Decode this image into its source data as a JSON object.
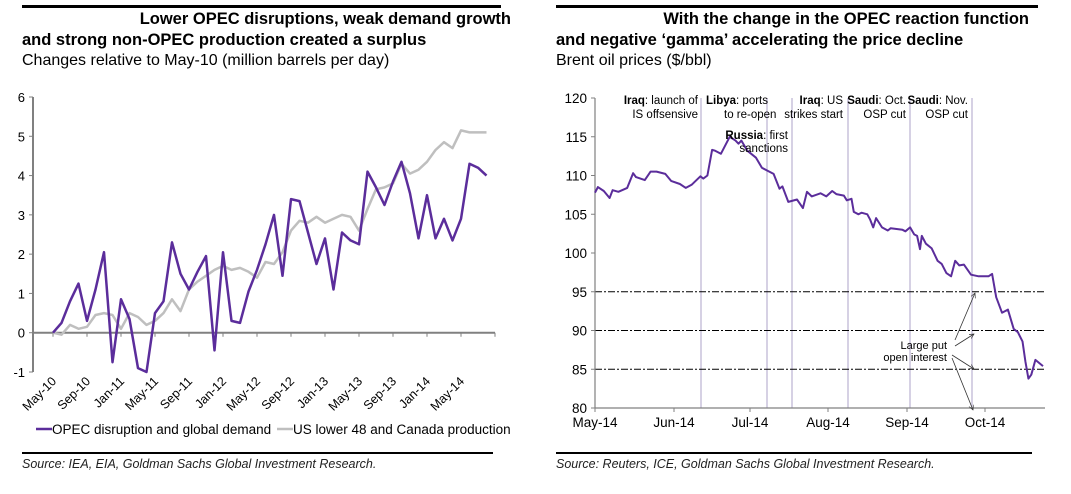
{
  "colors": {
    "opec": "#5b2d9b",
    "us": "#bfbfbf",
    "brent": "#5b2d9b",
    "axis": "#808080",
    "event_line": "#c9c2dc"
  },
  "left": {
    "title_line1": "Lower OPEC disruptions, weak demand growth",
    "title_line2": "and strong non-OPEC production created a surplus",
    "subtitle": "Changes relative to May-10 (million barrels per day)",
    "source": "Source: IEA, EIA, Goldman Sachs Global Investment Research."
  },
  "right": {
    "title_line1": "With the change in the OPEC reaction function",
    "title_line2": "and negative ‘gamma’ accelerating the price decline",
    "subtitle": "Brent oil prices ($/bbl)",
    "source": "Source: Reuters, ICE, Goldman Sachs Global Investment Research."
  },
  "chart_data": [
    {
      "type": "line",
      "title": "Lower OPEC disruptions, weak demand growth and strong non-OPEC production created a surplus",
      "subtitle": "Changes relative to May-10 (million barrels per day)",
      "xlabel": "",
      "ylabel": "",
      "ylim": [
        -1,
        6
      ],
      "yticks": [
        -1,
        0,
        1,
        2,
        3,
        4,
        5,
        6
      ],
      "xticks": [
        "May-10",
        "Sep-10",
        "Jan-11",
        "May-11",
        "Sep-11",
        "Jan-12",
        "May-12",
        "Sep-12",
        "Jan-13",
        "May-13",
        "Sep-13",
        "Jan-14",
        "May-14"
      ],
      "x_start": "May-10",
      "x_step": "1 month",
      "legend": "bottom",
      "series": [
        {
          "name": "OPEC disruption and global demand",
          "values": [
            0,
            0.25,
            0.8,
            1.25,
            0.3,
            1.1,
            2.05,
            -0.75,
            0.85,
            0.35,
            -0.9,
            -1.0,
            0.5,
            0.8,
            2.3,
            1.5,
            1.1,
            1.55,
            1.95,
            -0.45,
            2.05,
            0.3,
            0.25,
            1.05,
            1.6,
            2.25,
            3.0,
            1.45,
            3.4,
            3.35,
            2.55,
            1.75,
            2.4,
            1.1,
            2.55,
            2.35,
            2.25,
            4.1,
            3.7,
            3.25,
            3.85,
            4.35,
            3.55,
            2.4,
            3.5,
            2.4,
            2.9,
            2.35,
            2.9,
            4.3,
            4.2,
            4.0
          ]
        },
        {
          "name": "US lower 48 and Canada production",
          "values": [
            0,
            -0.05,
            0.2,
            0.1,
            0.15,
            0.45,
            0.5,
            0.45,
            0.1,
            0.5,
            0.4,
            0.2,
            0.3,
            0.5,
            0.85,
            0.55,
            1.1,
            1.3,
            1.45,
            1.6,
            1.7,
            1.6,
            1.65,
            1.55,
            1.4,
            1.8,
            1.75,
            2.05,
            2.6,
            2.85,
            2.8,
            2.95,
            2.8,
            2.9,
            3.0,
            2.95,
            2.6,
            3.15,
            3.65,
            3.7,
            3.8,
            4.3,
            4.05,
            4.15,
            4.35,
            4.65,
            4.85,
            4.7,
            5.15,
            5.1,
            5.1,
            5.1
          ]
        }
      ]
    },
    {
      "type": "line",
      "title": "With the change in the OPEC reaction function and negative ‘gamma’ accelerating the price decline",
      "subtitle": "Brent oil prices ($/bbl)",
      "xlabel": "",
      "ylabel": "",
      "ylim": [
        80,
        120
      ],
      "yticks": [
        80,
        85,
        90,
        95,
        100,
        105,
        110,
        115,
        120
      ],
      "xticks": [
        "May-14",
        "Jun-14",
        "Jul-14",
        "Aug-14",
        "Sep-14",
        "Oct-14"
      ],
      "x_range_months": [
        0,
        5.9
      ],
      "series": [
        {
          "name": "Brent",
          "points": [
            [
              0,
              107.8
            ],
            [
              0.05,
              108.5
            ],
            [
              0.15,
              108.0
            ],
            [
              0.25,
              107.1
            ],
            [
              0.3,
              108.1
            ],
            [
              0.4,
              107.9
            ],
            [
              0.55,
              108.4
            ],
            [
              0.65,
              110.3
            ],
            [
              0.7,
              109.8
            ],
            [
              0.85,
              109.4
            ],
            [
              0.95,
              110.5
            ],
            [
              1.05,
              110.5
            ],
            [
              1.2,
              110.2
            ],
            [
              1.3,
              109.3
            ],
            [
              1.45,
              108.9
            ],
            [
              1.55,
              108.4
            ],
            [
              1.65,
              108.8
            ],
            [
              1.8,
              109.9
            ],
            [
              1.85,
              109.6
            ],
            [
              1.92,
              110.0
            ],
            [
              2.0,
              113.3
            ],
            [
              2.05,
              113.2
            ],
            [
              2.15,
              112.8
            ],
            [
              2.3,
              115.0
            ],
            [
              2.4,
              114.5
            ],
            [
              2.45,
              114.1
            ],
            [
              2.5,
              114.5
            ],
            [
              2.6,
              113.2
            ],
            [
              2.75,
              112.3
            ],
            [
              2.85,
              111.0
            ],
            [
              2.95,
              110.6
            ],
            [
              3.05,
              110.2
            ],
            [
              3.15,
              108.3
            ],
            [
              3.2,
              108.6
            ],
            [
              3.3,
              106.6
            ],
            [
              3.45,
              106.9
            ],
            [
              3.55,
              105.8
            ],
            [
              3.62,
              107.9
            ],
            [
              3.7,
              107.3
            ],
            [
              3.85,
              107.7
            ],
            [
              3.95,
              107.3
            ],
            [
              4.05,
              108.0
            ],
            [
              4.12,
              107.6
            ],
            [
              4.25,
              107.4
            ],
            [
              4.3,
              106.8
            ],
            [
              4.38,
              107.0
            ],
            [
              4.42,
              105.3
            ],
            [
              4.5,
              105.0
            ],
            [
              4.55,
              105.2
            ],
            [
              4.65,
              105.0
            ],
            [
              4.7,
              104.3
            ],
            [
              4.75,
              103.3
            ],
            [
              4.8,
              104.5
            ],
            [
              4.9,
              103.3
            ],
            [
              5.0,
              102.9
            ],
            [
              5.05,
              103.2
            ],
            [
              5.15,
              103.1
            ],
            [
              5.25,
              103.0
            ],
            [
              5.3,
              102.8
            ],
            [
              5.38,
              103.3
            ],
            [
              5.45,
              102.4
            ],
            [
              5.5,
              102.2
            ],
            [
              5.55,
              100.5
            ],
            [
              5.58,
              102.2
            ],
            [
              5.65,
              101.2
            ],
            [
              5.75,
              100.6
            ],
            [
              5.85,
              99.0
            ],
            [
              5.92,
              98.6
            ],
            [
              6.0,
              97.4
            ],
            [
              6.08,
              97.0
            ],
            [
              6.15,
              99.0
            ],
            [
              6.22,
              98.4
            ],
            [
              6.3,
              98.5
            ],
            [
              6.42,
              97.2
            ],
            [
              6.55,
              97.0
            ],
            [
              6.72,
              97.0
            ],
            [
              6.78,
              97.3
            ],
            [
              6.85,
              94.3
            ],
            [
              6.95,
              92.3
            ],
            [
              7.05,
              92.7
            ],
            [
              7.15,
              90.2
            ],
            [
              7.22,
              89.8
            ],
            [
              7.3,
              88.6
            ],
            [
              7.35,
              86.0
            ],
            [
              7.4,
              83.8
            ],
            [
              7.45,
              84.3
            ],
            [
              7.52,
              86.2
            ],
            [
              7.65,
              85.4
            ]
          ]
        }
      ],
      "reference_lines": [
        95,
        90,
        85
      ],
      "events": [
        {
          "label_bold": "Iraq",
          "label_rest": ": launch of",
          "line2": "IS offsensive",
          "month": 1.43
        },
        {
          "label_bold": "Libya",
          "label_rest": ": ports",
          "line2": "to re-open",
          "month": 1.43
        },
        {
          "label_bold": "Russia",
          "label_rest": ": first",
          "line2": "sanctions",
          "month": 2.3
        },
        {
          "label_bold": "Iraq",
          "label_rest": ": US",
          "line2": "strikes start",
          "month": 2.63
        },
        {
          "label_bold": "Saudi",
          "label_rest": ": Oct.",
          "line2": "OSP cut",
          "month": 3.38
        },
        {
          "label_bold": "Saudi",
          "label_rest": ": Nov.",
          "line2": "OSP cut",
          "month": 4.26
        }
      ],
      "annotation": {
        "line1": "Large put",
        "line2": "open interest"
      }
    }
  ]
}
